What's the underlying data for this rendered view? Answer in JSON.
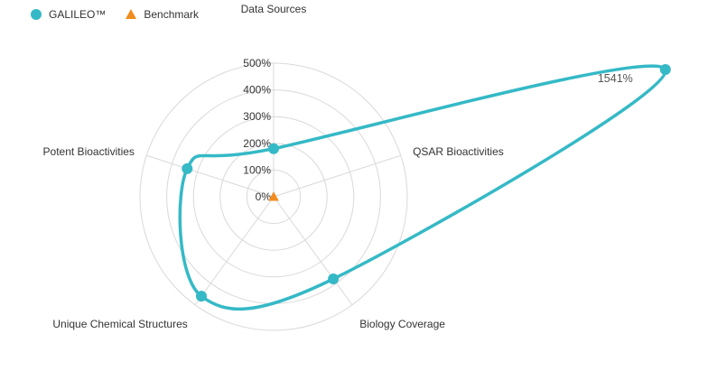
{
  "chart_data": {
    "type": "radar",
    "axes": [
      "Data Sources",
      "QSAR Bioactivities",
      "Biology Coverage",
      "Unique Chemical Structures",
      "Potent Bioactivities"
    ],
    "series": [
      {
        "name": "GALILEO™",
        "values": [
          180,
          1541,
          380,
          460,
          340
        ],
        "color": "#35b9c6",
        "marker": "circle"
      },
      {
        "name": "Benchmark",
        "values": [
          0,
          0,
          0,
          0,
          0
        ],
        "color": "#f28c1f",
        "marker": "triangle"
      }
    ],
    "r_ticks": [
      "0%",
      "100%",
      "200%",
      "300%",
      "400%",
      "500%"
    ],
    "r_max": 500,
    "data_labels": [
      {
        "axis": "QSAR Bioactivities",
        "series": "GALILEO™",
        "text": "1541%"
      }
    ],
    "grid": true,
    "legend_position": "top-left"
  }
}
